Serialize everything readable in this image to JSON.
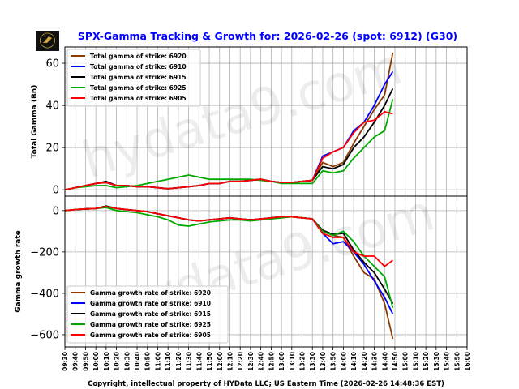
{
  "title": "SPX-Gamma Tracking & Growth for: 2026-02-26 (spot: 6912) (G30)",
  "footer": "Copyright, intellectual property of HYData LLC; US Eastern Time (2026-02-26 14:48:36 EST)",
  "watermark": "hydata9.com",
  "logo_text": "HYData",
  "colors": {
    "title": "#0000ff",
    "6920": "#8b3a00",
    "6910": "#0000ff",
    "6915": "#000000",
    "6925": "#00aa00",
    "6905": "#ff0000"
  },
  "chart_data": [
    {
      "type": "line",
      "ylabel": "Total Gamma (Bn)",
      "ylim": [
        -3,
        67.7
      ],
      "yticks": [
        0,
        20,
        40,
        60
      ],
      "grid": true,
      "legend_placement": "top-left",
      "x": [
        "09:30",
        "09:40",
        "09:50",
        "10:00",
        "10:10",
        "10:20",
        "10:30",
        "10:40",
        "10:50",
        "11:00",
        "11:10",
        "11:20",
        "11:30",
        "11:40",
        "11:50",
        "12:00",
        "12:10",
        "12:20",
        "12:30",
        "12:40",
        "12:50",
        "13:00",
        "13:10",
        "13:20",
        "13:30",
        "13:40",
        "13:50",
        "14:00",
        "14:10",
        "14:20",
        "14:30",
        "14:40",
        "14:48"
      ],
      "series": [
        {
          "name": "Total gamma of strike: 6920",
          "key": "6920",
          "values": [
            0,
            1,
            2,
            3,
            3.5,
            2,
            2,
            1.5,
            1.5,
            1,
            0.5,
            1,
            1.5,
            2,
            3,
            3,
            4,
            4,
            4.5,
            5,
            4,
            3.5,
            3.5,
            4,
            4.5,
            13,
            11,
            13,
            22,
            30,
            38,
            45,
            65
          ]
        },
        {
          "name": "Total gamma of strike: 6910",
          "key": "6910",
          "values": [
            0,
            1,
            2,
            3,
            3.5,
            2,
            2,
            1.5,
            1.5,
            1,
            0.5,
            1,
            1.5,
            2,
            3,
            3,
            4,
            4,
            4.5,
            5,
            4,
            3.5,
            3.5,
            4,
            4.5,
            16,
            18,
            20,
            28,
            32,
            40,
            50,
            56
          ]
        },
        {
          "name": "Total gamma of strike: 6915",
          "key": "6915",
          "values": [
            0,
            1,
            2,
            3,
            4,
            2,
            2,
            1.5,
            1.5,
            1,
            0.5,
            1,
            1.5,
            2,
            3,
            3,
            4,
            4,
            4.5,
            5,
            4,
            3.5,
            3.5,
            4,
            4.5,
            11,
            10,
            12,
            20,
            25,
            32,
            40,
            48
          ]
        },
        {
          "name": "Total gamma of strike: 6925",
          "key": "6925",
          "values": [
            0,
            1,
            1.5,
            2,
            2,
            1,
            1.5,
            2,
            3,
            4,
            5,
            6,
            7,
            6,
            5,
            5,
            5,
            5,
            5,
            4.5,
            4,
            3,
            3,
            3,
            3,
            9,
            8,
            9,
            15,
            20,
            25,
            28,
            43
          ]
        },
        {
          "name": "Total gamma of strike: 6905",
          "key": "6905",
          "values": [
            0,
            1,
            2,
            3,
            3.5,
            2,
            2,
            1.5,
            1.5,
            1,
            0.5,
            1,
            1.5,
            2,
            3,
            3,
            4,
            4,
            4.5,
            5,
            4,
            3.5,
            3.5,
            4,
            4.5,
            15,
            18,
            20,
            27,
            32,
            33,
            37,
            36
          ]
        }
      ]
    },
    {
      "type": "line",
      "ylabel": "Gamma growth rate",
      "ylim": [
        -659,
        70
      ],
      "yticks": [
        0,
        -200,
        -400,
        -600
      ],
      "grid": true,
      "legend_placement": "bottom-left",
      "xlim": [
        "09:30",
        "16:00"
      ],
      "xticks": [
        "09:30",
        "09:40",
        "09:50",
        "10:00",
        "10:10",
        "10:20",
        "10:30",
        "10:40",
        "10:50",
        "11:00",
        "11:10",
        "11:20",
        "11:30",
        "11:40",
        "11:50",
        "12:00",
        "12:10",
        "12:20",
        "12:30",
        "12:40",
        "12:50",
        "13:00",
        "13:10",
        "13:20",
        "13:30",
        "13:40",
        "13:50",
        "14:00",
        "14:10",
        "14:20",
        "14:30",
        "14:40",
        "14:50",
        "15:00",
        "15:10",
        "15:20",
        "15:30",
        "15:40",
        "15:50",
        "16:00"
      ],
      "x": [
        "09:30",
        "09:40",
        "09:50",
        "10:00",
        "10:10",
        "10:20",
        "10:30",
        "10:40",
        "10:50",
        "11:00",
        "11:10",
        "11:20",
        "11:30",
        "11:40",
        "11:50",
        "12:00",
        "12:10",
        "12:20",
        "12:30",
        "12:40",
        "12:50",
        "13:00",
        "13:10",
        "13:20",
        "13:30",
        "13:40",
        "13:50",
        "14:00",
        "14:10",
        "14:20",
        "14:30",
        "14:40",
        "14:48"
      ],
      "series": [
        {
          "name": "Gamma growth rate of strike: 6920",
          "key": "6920",
          "values": [
            0,
            5,
            8,
            10,
            20,
            10,
            5,
            0,
            -5,
            -15,
            -25,
            -35,
            -45,
            -50,
            -45,
            -40,
            -35,
            -40,
            -45,
            -40,
            -35,
            -30,
            -30,
            -35,
            -40,
            -100,
            -120,
            -130,
            -220,
            -300,
            -330,
            -450,
            -620
          ]
        },
        {
          "name": "Gamma growth rate of strike: 6910",
          "key": "6910",
          "values": [
            0,
            5,
            8,
            10,
            20,
            10,
            5,
            0,
            -5,
            -15,
            -25,
            -35,
            -45,
            -50,
            -45,
            -40,
            -35,
            -40,
            -45,
            -40,
            -35,
            -30,
            -30,
            -35,
            -40,
            -110,
            -160,
            -150,
            -200,
            -260,
            -340,
            -420,
            -500
          ]
        },
        {
          "name": "Gamma growth rate of strike: 6915",
          "key": "6915",
          "values": [
            0,
            5,
            8,
            10,
            22,
            10,
            5,
            0,
            -5,
            -15,
            -25,
            -35,
            -45,
            -50,
            -45,
            -40,
            -35,
            -40,
            -45,
            -40,
            -35,
            -30,
            -30,
            -35,
            -40,
            -95,
            -115,
            -110,
            -190,
            -250,
            -300,
            -380,
            -450
          ]
        },
        {
          "name": "Gamma growth rate of strike: 6925",
          "key": "6925",
          "values": [
            0,
            5,
            8,
            10,
            15,
            0,
            -5,
            -10,
            -20,
            -30,
            -45,
            -70,
            -75,
            -65,
            -55,
            -50,
            -45,
            -45,
            -50,
            -45,
            -40,
            -35,
            -30,
            -35,
            -40,
            -100,
            -120,
            -100,
            -150,
            -220,
            -270,
            -320,
            -470
          ]
        },
        {
          "name": "Gamma growth rate of strike: 6905",
          "key": "6905",
          "values": [
            0,
            5,
            8,
            10,
            20,
            10,
            5,
            0,
            -5,
            -15,
            -25,
            -35,
            -45,
            -50,
            -45,
            -40,
            -35,
            -40,
            -45,
            -40,
            -35,
            -30,
            -30,
            -35,
            -40,
            -110,
            -130,
            -130,
            -200,
            -220,
            -220,
            -270,
            -240
          ]
        }
      ]
    }
  ]
}
